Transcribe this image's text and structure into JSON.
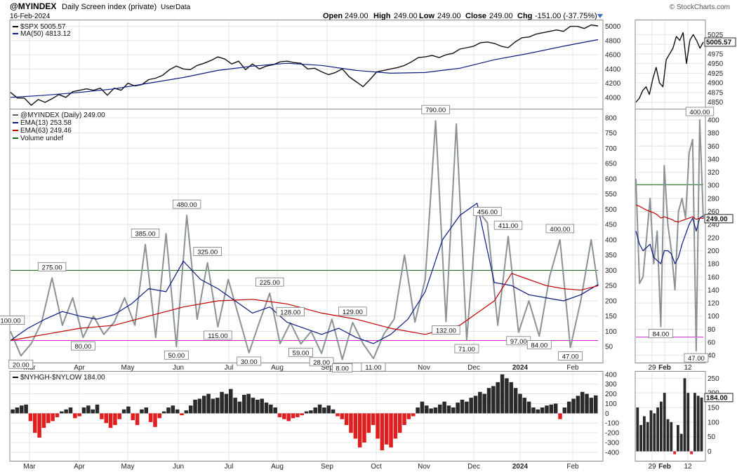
{
  "header": {
    "symbol": "@MYINDEX",
    "description": "Daily Screen index (private)",
    "source": "UserData",
    "date": "16-Feb-2024",
    "watermark": "© StockCharts.com",
    "ohlc": [
      {
        "label": "Open",
        "value": "249.00"
      },
      {
        "label": "High",
        "value": "249.00"
      },
      {
        "label": "Low",
        "value": "249.00"
      },
      {
        "label": "Close",
        "value": "249.00"
      },
      {
        "label": "Chg",
        "value": "-151.00 (-37.75%)"
      }
    ],
    "chg_icon": "triangle-down-icon"
  },
  "chart_data": [
    {
      "type": "line",
      "panel": "spx",
      "legend": [
        {
          "name": "$SPX 5005.57",
          "color": "#000000"
        },
        {
          "name": "MA(50) 4813.12",
          "color": "#0b1a80"
        }
      ],
      "ylim": [
        3850,
        5075
      ],
      "yticks": [
        4000,
        4200,
        4400,
        4600,
        4800,
        5000
      ],
      "series": [
        {
          "name": "$SPX",
          "color": "#111111",
          "x": [
            0,
            4,
            8,
            12,
            16,
            20,
            24,
            28,
            32,
            36,
            40,
            44,
            48,
            52,
            56,
            60,
            64,
            68,
            72,
            76,
            80,
            84,
            88,
            92,
            96,
            100,
            104,
            108,
            112,
            116,
            120,
            124,
            128,
            132,
            136,
            140,
            144,
            148,
            152,
            156,
            160,
            164,
            168,
            172,
            176,
            180,
            184,
            188,
            192,
            196,
            200,
            204,
            208,
            212,
            216,
            220,
            224,
            228,
            232,
            236,
            240,
            244,
            248,
            252,
            256,
            260,
            264,
            268,
            272,
            276,
            280,
            284,
            288,
            292,
            296,
            300,
            304,
            308,
            312,
            316,
            320,
            324,
            328,
            332,
            336,
            340
          ],
          "y": [
            4070,
            3990,
            3990,
            3890,
            3970,
            3930,
            3980,
            4040,
            4000,
            4080,
            4100,
            4120,
            4100,
            4130,
            4030,
            4130,
            4100,
            4200,
            4160,
            4180,
            4250,
            4270,
            4310,
            4390,
            4440,
            4400,
            4390,
            4450,
            4480,
            4520,
            4570,
            4540,
            4470,
            4510,
            4390,
            4470,
            4400,
            4440,
            4460,
            4500,
            4510,
            4490,
            4480,
            4400,
            4410,
            4360,
            4320,
            4350,
            4400,
            4290,
            4220,
            4150,
            4250,
            4360,
            4380,
            4400,
            4420,
            4450,
            4500,
            4560,
            4570,
            4590,
            4560,
            4600,
            4620,
            4680,
            4700,
            4720,
            4770,
            4780,
            4760,
            4720,
            4700,
            4780,
            4840,
            4850,
            4890,
            4910,
            4930,
            4950,
            4930,
            5000,
            5000,
            4970,
            5020,
            5005.57
          ]
        },
        {
          "name": "MA(50)",
          "color": "#0b1a80",
          "x": [
            0,
            20,
            40,
            60,
            80,
            100,
            120,
            140,
            160,
            180,
            200,
            220,
            240,
            260,
            280,
            300,
            320,
            340
          ],
          "y": [
            4000,
            4030,
            4070,
            4120,
            4200,
            4280,
            4380,
            4440,
            4480,
            4450,
            4380,
            4340,
            4350,
            4410,
            4530,
            4620,
            4720,
            4813.12
          ]
        }
      ]
    },
    {
      "type": "line",
      "panel": "myindex",
      "legend": [
        {
          "name": "@MYINDEX (Daily) 249.00",
          "color": "#606060"
        },
        {
          "name": "EMA(13) 253.58",
          "color": "#0b1a80"
        },
        {
          "name": "EMA(63) 249.46",
          "color": "#c00000"
        },
        {
          "name": "Volume undef",
          "color": "#1a6b1a"
        }
      ],
      "ylim": [
        0,
        825
      ],
      "yticks": [
        50,
        100,
        150,
        200,
        250,
        300,
        350,
        400,
        450,
        500,
        550,
        600,
        650,
        700,
        750,
        800
      ],
      "hlines": [
        {
          "value": 300,
          "color": "#1a6b1a"
        },
        {
          "value": 70,
          "color": "#d020d0"
        }
      ],
      "series": [
        {
          "name": "@MYINDEX",
          "color": "#8a9296",
          "x": [
            0,
            6,
            12,
            18,
            24,
            30,
            36,
            42,
            48,
            54,
            60,
            66,
            72,
            78,
            84,
            90,
            96,
            102,
            108,
            114,
            120,
            126,
            132,
            138,
            144,
            150,
            156,
            162,
            168,
            174,
            180,
            186,
            192,
            198,
            204,
            210,
            216,
            222,
            228,
            234,
            240,
            246,
            252,
            258,
            264,
            270,
            276,
            282,
            288,
            294,
            300,
            306,
            312,
            318,
            324,
            330,
            336,
            340
          ],
          "y": [
            100,
            20,
            60,
            130,
            275,
            120,
            210,
            80,
            150,
            90,
            130,
            210,
            120,
            385,
            80,
            420,
            50,
            480,
            140,
            325,
            115,
            270,
            150,
            30,
            130,
            225,
            60,
            128,
            59,
            100,
            28,
            140,
            8,
            129,
            60,
            11,
            90,
            140,
            350,
            130,
            270,
            790,
            132,
            780,
            71,
            500,
            456,
            120,
            411,
            97,
            200,
            84,
            280,
            400,
            47,
            200,
            400,
            249
          ]
        },
        {
          "name": "EMA(13)",
          "color": "#0b1a80",
          "x": [
            0,
            10,
            20,
            30,
            40,
            50,
            60,
            70,
            80,
            90,
            100,
            110,
            120,
            130,
            140,
            150,
            160,
            170,
            180,
            190,
            200,
            210,
            220,
            230,
            240,
            250,
            260,
            270,
            280,
            290,
            300,
            310,
            320,
            330,
            340
          ],
          "y": [
            70,
            110,
            140,
            165,
            150,
            140,
            155,
            190,
            240,
            230,
            330,
            270,
            240,
            200,
            160,
            180,
            130,
            110,
            90,
            110,
            80,
            60,
            90,
            140,
            230,
            400,
            480,
            520,
            260,
            250,
            220,
            210,
            200,
            220,
            253.58
          ]
        },
        {
          "name": "EMA(63)",
          "color": "#c00000",
          "x": [
            0,
            20,
            40,
            60,
            80,
            100,
            120,
            140,
            160,
            180,
            200,
            220,
            240,
            260,
            270,
            280,
            290,
            300,
            310,
            320,
            330,
            340
          ],
          "y": [
            70,
            90,
            110,
            120,
            150,
            180,
            200,
            205,
            190,
            160,
            140,
            110,
            90,
            120,
            160,
            200,
            290,
            270,
            250,
            240,
            235,
            249.46
          ]
        }
      ],
      "annotations": [
        "100.00",
        "20.00",
        "275.00",
        "385.00",
        "80.00",
        "480.00",
        "50.00",
        "325.00",
        "115.00",
        "30.00",
        "225.00",
        "128.00",
        "59.00",
        "28.00",
        "8.00",
        "129.00",
        "11.00",
        "790.00",
        "132.00",
        "71.00",
        "456.00",
        "411.00",
        "97.00",
        "84.00",
        "400.00",
        "47.00"
      ]
    },
    {
      "type": "bar",
      "panel": "nyhgh",
      "legend": [
        {
          "name": "$NYHGH-$NYLOW 184.00",
          "color": "#000000"
        }
      ],
      "ylim": [
        -480,
        420
      ],
      "yticks": [
        -400,
        -300,
        -200,
        -100,
        0,
        100,
        200,
        300,
        400
      ],
      "values": [
        40,
        60,
        80,
        90,
        -80,
        -200,
        -250,
        -150,
        -100,
        -80,
        -40,
        20,
        40,
        60,
        -50,
        -30,
        60,
        80,
        40,
        90,
        -60,
        -100,
        -150,
        -120,
        -60,
        40,
        70,
        -70,
        -120,
        40,
        60,
        -90,
        -140,
        -50,
        20,
        60,
        80,
        40,
        -20,
        30,
        80,
        140,
        150,
        180,
        200,
        150,
        160,
        220,
        200,
        250,
        160,
        120,
        190,
        200,
        160,
        140,
        150,
        110,
        90,
        60,
        -40,
        -60,
        -80,
        -50,
        -40,
        -20,
        20,
        30,
        60,
        90,
        60,
        80,
        40,
        -30,
        -60,
        -120,
        -200,
        -260,
        -350,
        -300,
        -200,
        -120,
        -260,
        -380,
        -320,
        -350,
        -260,
        -200,
        -120,
        -60,
        -30,
        60,
        120,
        80,
        50,
        60,
        90,
        120,
        80,
        60,
        110,
        140,
        120,
        160,
        180,
        220,
        200,
        260,
        280,
        320,
        400,
        360,
        320,
        260,
        200,
        160,
        120,
        60,
        40,
        60,
        80,
        90,
        100,
        -60,
        60,
        120,
        150,
        180,
        220,
        200,
        160,
        184
      ]
    },
    {
      "type": "line",
      "panel": "spx-zoom",
      "ylim": [
        4835,
        5060
      ],
      "yticks": [
        4850,
        4875,
        4900,
        4925,
        4950,
        4975,
        5000,
        5025
      ],
      "values": [
        4850,
        4860,
        4880,
        4890,
        4870,
        4910,
        4940,
        4900,
        4890,
        4960,
        4975,
        4990,
        5020,
        5010,
        5030,
        4950,
        5010,
        5025,
        5010,
        4990,
        5005.57
      ],
      "last_label": "5005.57"
    },
    {
      "type": "line",
      "panel": "myindex-zoom",
      "ylim": [
        30,
        415
      ],
      "yticks": [
        40,
        60,
        80,
        100,
        120,
        140,
        160,
        180,
        200,
        220,
        240,
        260,
        280,
        300,
        320,
        340,
        360,
        380,
        400
      ],
      "hlines": [
        {
          "value": 301,
          "color": "#1a6b1a"
        },
        {
          "value": 68,
          "color": "#d020d0"
        }
      ],
      "values": [
        310,
        150,
        160,
        220,
        280,
        180,
        230,
        84,
        330,
        240,
        200,
        140,
        260,
        280,
        250,
        350,
        370,
        47,
        400,
        249
      ],
      "ema13": [
        230,
        210,
        200,
        205,
        210,
        190,
        185,
        180,
        200,
        200,
        195,
        180,
        190,
        210,
        225,
        240,
        250,
        230,
        250,
        253.58
      ],
      "ema63": [
        270,
        268,
        265,
        262,
        260,
        258,
        255,
        250,
        252,
        250,
        248,
        245,
        244,
        246,
        248,
        250,
        252,
        248,
        250,
        249.46
      ],
      "annotations": [
        "400.00",
        "84.00",
        "47.00"
      ],
      "last_label": "249.00"
    },
    {
      "type": "bar",
      "panel": "nyhgh-zoom",
      "ylim": [
        -30,
        270
      ],
      "yticks": [
        0,
        50,
        100,
        150,
        200,
        250
      ],
      "values": [
        150,
        90,
        120,
        100,
        140,
        130,
        150,
        170,
        200,
        110,
        100,
        -10,
        90,
        60,
        250,
        200,
        -10,
        200,
        190,
        184
      ],
      "last_label": "184.00"
    }
  ],
  "x_axis": {
    "main_labels": [
      "Mar",
      "Apr",
      "May",
      "Jun",
      "Jul",
      "Aug",
      "Sep",
      "Oct",
      "Nov",
      "Dec",
      "2024",
      "Feb"
    ],
    "zoom_labels": [
      "29",
      "Feb",
      "12"
    ]
  }
}
